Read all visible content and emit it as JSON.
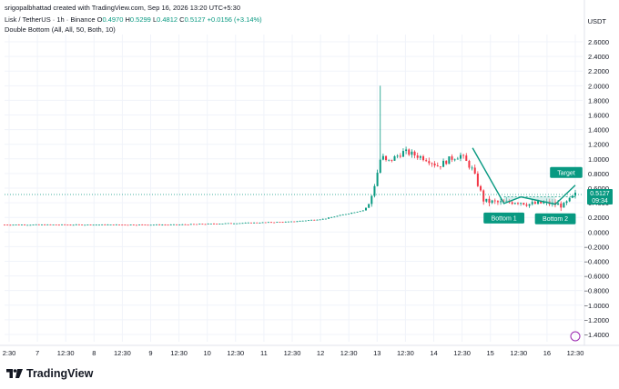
{
  "header": {
    "credit": "srigopalbhattad created with TradingView.com, Sep 16, 2026 13:20 UTC+5:30",
    "symbol": "Lisk / TetherUS · 1h · Binance",
    "o_label": "O",
    "o_value": "0.4970",
    "h_label": "H",
    "h_value": "0.5299",
    "l_label": "L",
    "l_value": "0.4812",
    "c_label": "C",
    "c_value": "0.5127",
    "change": "+0.0156 (+3.14%)",
    "indicator": "Double Bottom (All, All, 50, Both, 10)",
    "currency": "USDT"
  },
  "brand": {
    "name": "TradingView"
  },
  "colors": {
    "up": "#089981",
    "down": "#f23645",
    "pattern": "#089981",
    "pattern_fill": "#b2dfdb"
  },
  "chart_data": {
    "type": "candlestick",
    "ylim": [
      -1.5,
      2.7
    ],
    "y_ticks": [
      2.6,
      2.4,
      2.2,
      2.0,
      1.8,
      1.6,
      1.4,
      1.2,
      1.0,
      0.8,
      0.6,
      0.4,
      0.2,
      0.0,
      -0.2,
      -0.4,
      -0.6,
      -0.8,
      -1.0,
      -1.2,
      -1.4
    ],
    "y_tick_labels": [
      "2.6000",
      "2.4000",
      "2.2000",
      "2.0000",
      "1.8000",
      "1.6000",
      "1.4000",
      "1.2000",
      "1.0000",
      "0.8000",
      "0.6000",
      "0.4000",
      "0.2000",
      "0.0000",
      "−0.2000",
      "−0.4000",
      "−0.6000",
      "−0.8000",
      "−1.0000",
      "−1.2000",
      "−1.4000"
    ],
    "x_tick_labels": [
      "2:30",
      "7",
      "12:30",
      "8",
      "12:30",
      "9",
      "12:30",
      "10",
      "12:30",
      "11",
      "12:30",
      "12",
      "12:30",
      "13",
      "12:30",
      "14",
      "12:30",
      "15",
      "12:30",
      "16",
      "12:30"
    ],
    "last_price": {
      "value": 0.5127,
      "label": "0.5127",
      "countdown": "09:34"
    },
    "close_profile": [
      [
        0,
        0.1
      ],
      [
        0.3,
        0.1
      ],
      [
        0.4,
        0.12
      ],
      [
        0.5,
        0.14
      ],
      [
        0.56,
        0.18
      ],
      [
        0.6,
        0.25
      ],
      [
        0.63,
        0.3
      ],
      [
        0.64,
        0.4
      ],
      [
        0.65,
        0.7
      ],
      [
        0.66,
        1.05
      ],
      [
        0.67,
        0.95
      ],
      [
        0.7,
        1.1
      ],
      [
        0.74,
        1.0
      ],
      [
        0.76,
        0.9
      ],
      [
        0.78,
        1.0
      ],
      [
        0.8,
        1.05
      ],
      [
        0.82,
        0.85
      ],
      [
        0.84,
        0.42
      ],
      [
        0.87,
        0.4
      ],
      [
        0.9,
        0.42
      ],
      [
        0.92,
        0.38
      ],
      [
        0.95,
        0.4
      ],
      [
        0.98,
        0.36
      ],
      [
        1.0,
        0.51
      ]
    ],
    "spike": {
      "position": 0.66,
      "high": 2.0
    },
    "pattern": {
      "name": "Double Bottom",
      "points": [
        {
          "label": "",
          "t": 0.82,
          "y": 1.15
        },
        {
          "label": "Bottom 1",
          "t": 0.875,
          "y": 0.39
        },
        {
          "label": "",
          "t": 0.905,
          "y": 0.48
        },
        {
          "label": "Bottom 2",
          "t": 0.965,
          "y": 0.38
        },
        {
          "label": "Target",
          "t": 1.0,
          "y": 0.64
        }
      ],
      "neckline": 0.48,
      "labels": {
        "bottom1": "Bottom 1",
        "bottom2": "Bottom 2",
        "target": "Target"
      }
    }
  }
}
